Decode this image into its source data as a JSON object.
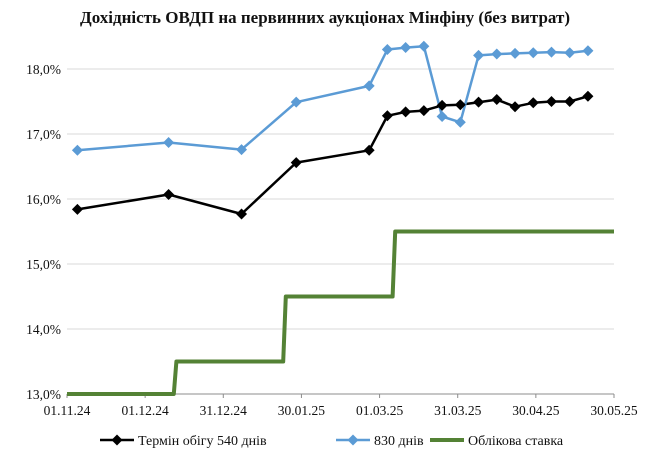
{
  "chart_data": {
    "type": "line",
    "title": "Дохідність ОВДП на первинних аукціонах Мінфіну (без витрат)",
    "xlabel": "",
    "ylabel": "",
    "x_ticks": [
      "01.11.24",
      "01.12.24",
      "31.12.24",
      "30.01.25",
      "01.03.25",
      "31.03.25",
      "30.04.25",
      "30.05.25"
    ],
    "xlim": [
      "2024-11-01",
      "2025-05-30"
    ],
    "y_ticks": [
      "13,0%",
      "14,0%",
      "15,0%",
      "16,0%",
      "17,0%",
      "18,0%"
    ],
    "ylim": [
      13.0,
      18.6
    ],
    "grid": "horizontal",
    "legend": "bottom",
    "series": [
      {
        "name": "Термін обігу 540 днів",
        "color": "#000000",
        "marker": "diamond",
        "points": [
          [
            "2024-11-05",
            15.84
          ],
          [
            "2024-12-10",
            16.07
          ],
          [
            "2025-01-07",
            15.77
          ],
          [
            "2025-01-28",
            16.56
          ],
          [
            "2025-02-25",
            16.75
          ],
          [
            "2025-03-04",
            17.28
          ],
          [
            "2025-03-11",
            17.34
          ],
          [
            "2025-03-18",
            17.36
          ],
          [
            "2025-03-25",
            17.44
          ],
          [
            "2025-04-01",
            17.45
          ],
          [
            "2025-04-08",
            17.49
          ],
          [
            "2025-04-15",
            17.53
          ],
          [
            "2025-04-22",
            17.42
          ],
          [
            "2025-04-29",
            17.48
          ],
          [
            "2025-05-06",
            17.5
          ],
          [
            "2025-05-13",
            17.5
          ],
          [
            "2025-05-20",
            17.58
          ]
        ]
      },
      {
        "name": "830 днів",
        "color": "#5b9bd5",
        "marker": "diamond",
        "points": [
          [
            "2024-11-05",
            16.75
          ],
          [
            "2024-12-10",
            16.87
          ],
          [
            "2025-01-07",
            16.76
          ],
          [
            "2025-01-28",
            17.49
          ],
          [
            "2025-02-25",
            17.74
          ],
          [
            "2025-03-04",
            18.3
          ],
          [
            "2025-03-11",
            18.33
          ],
          [
            "2025-03-18",
            18.35
          ],
          [
            "2025-03-25",
            17.27
          ],
          [
            "2025-04-01",
            17.18
          ],
          [
            "2025-04-08",
            18.21
          ],
          [
            "2025-04-15",
            18.23
          ],
          [
            "2025-04-22",
            18.24
          ],
          [
            "2025-04-29",
            18.25
          ],
          [
            "2025-05-06",
            18.26
          ],
          [
            "2025-05-13",
            18.25
          ],
          [
            "2025-05-20",
            18.28
          ]
        ]
      },
      {
        "name": "Облікова ставка",
        "color": "#548235",
        "marker": "none",
        "step": true,
        "points": [
          [
            "2024-11-01",
            13.0
          ],
          [
            "2024-12-12",
            13.0
          ],
          [
            "2024-12-13",
            13.5
          ],
          [
            "2025-01-23",
            13.5
          ],
          [
            "2025-01-24",
            14.5
          ],
          [
            "2025-03-06",
            14.5
          ],
          [
            "2025-03-07",
            15.5
          ],
          [
            "2025-05-30",
            15.5
          ]
        ]
      }
    ]
  }
}
